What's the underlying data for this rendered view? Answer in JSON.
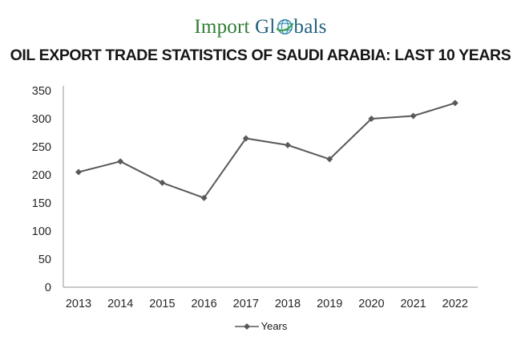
{
  "logo": {
    "part1": "Import",
    "part2": "Gl",
    "part3": "bals",
    "green": "#2e7d32",
    "blue": "#1f5e7d",
    "globe_color": "#2b87a8",
    "globe_fill": "#e9f6fb",
    "swoosh_color": "#3a9d45"
  },
  "title": "OIL EXPORT TRADE STATISTICS OF SAUDI ARABIA: LAST 10 YEARS",
  "chart_data": {
    "type": "line",
    "categories": [
      "2013",
      "2014",
      "2015",
      "2016",
      "2017",
      "2018",
      "2019",
      "2020",
      "2021",
      "2022"
    ],
    "series": [
      {
        "name": "Years",
        "values": [
          205,
          224,
          186,
          159,
          265,
          253,
          228,
          300,
          305,
          328
        ]
      }
    ],
    "title": "OIL EXPORT TRADE STATISTICS OF SAUDI ARABIA: LAST 10 YEARS",
    "xlabel": "",
    "ylabel": "",
    "ylim": [
      0,
      350
    ],
    "y_ticks": [
      0,
      50,
      100,
      150,
      200,
      250,
      300,
      350
    ],
    "grid": false,
    "legend_position": "bottom",
    "legend_label": "Years",
    "line_color": "#595959",
    "marker": "diamond",
    "axis_color": "#a6a6a6",
    "tick_color": "#262626"
  }
}
